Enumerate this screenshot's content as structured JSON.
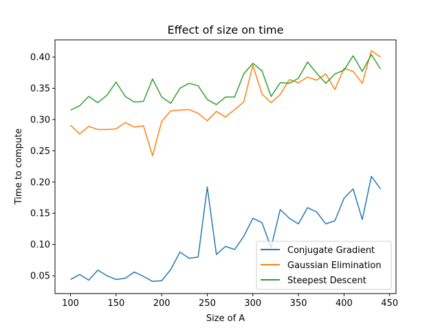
{
  "chart_data": {
    "type": "line",
    "title": "Effect of size on time",
    "xlabel": "Size of A",
    "ylabel": "Time to compute",
    "xlim": [
      83,
      457
    ],
    "ylim": [
      0.0215,
      0.4275
    ],
    "xticks": [
      100,
      150,
      200,
      250,
      300,
      350,
      400,
      450
    ],
    "yticks": [
      0.05,
      0.1,
      0.15,
      0.2,
      0.25,
      0.3,
      0.35,
      0.4
    ],
    "ytick_labels": [
      "0.05",
      "0.10",
      "0.15",
      "0.20",
      "0.25",
      "0.30",
      "0.35",
      "0.40"
    ],
    "grid": false,
    "legend_position": "lower-right",
    "x": [
      100,
      110,
      120,
      130,
      140,
      150,
      160,
      170,
      180,
      190,
      200,
      210,
      220,
      230,
      240,
      250,
      260,
      270,
      280,
      290,
      300,
      310,
      320,
      330,
      340,
      350,
      360,
      370,
      380,
      390,
      400,
      410,
      420,
      430,
      440
    ],
    "series": [
      {
        "name": "Conjugate Gradient",
        "color": "#1f77b4",
        "values": [
          0.044,
          0.052,
          0.043,
          0.059,
          0.05,
          0.044,
          0.046,
          0.056,
          0.049,
          0.041,
          0.042,
          0.06,
          0.088,
          0.078,
          0.08,
          0.192,
          0.084,
          0.097,
          0.092,
          0.113,
          0.142,
          0.135,
          0.095,
          0.156,
          0.142,
          0.133,
          0.159,
          0.152,
          0.133,
          0.138,
          0.174,
          0.189,
          0.14,
          0.209,
          0.189
        ]
      },
      {
        "name": "Gaussian Elimination",
        "color": "#ff7f0e",
        "values": [
          0.291,
          0.277,
          0.289,
          0.284,
          0.284,
          0.285,
          0.295,
          0.288,
          0.29,
          0.242,
          0.297,
          0.314,
          0.315,
          0.316,
          0.31,
          0.298,
          0.313,
          0.304,
          0.316,
          0.328,
          0.387,
          0.341,
          0.327,
          0.34,
          0.364,
          0.359,
          0.368,
          0.363,
          0.373,
          0.348,
          0.382,
          0.377,
          0.358,
          0.41,
          0.4
        ]
      },
      {
        "name": "Steepest Descent",
        "color": "#2ca02c",
        "values": [
          0.315,
          0.322,
          0.337,
          0.327,
          0.339,
          0.36,
          0.337,
          0.328,
          0.329,
          0.365,
          0.336,
          0.326,
          0.35,
          0.358,
          0.354,
          0.332,
          0.324,
          0.336,
          0.336,
          0.373,
          0.39,
          0.378,
          0.337,
          0.359,
          0.358,
          0.366,
          0.392,
          0.374,
          0.358,
          0.373,
          0.379,
          0.402,
          0.377,
          0.404,
          0.381
        ]
      }
    ]
  }
}
